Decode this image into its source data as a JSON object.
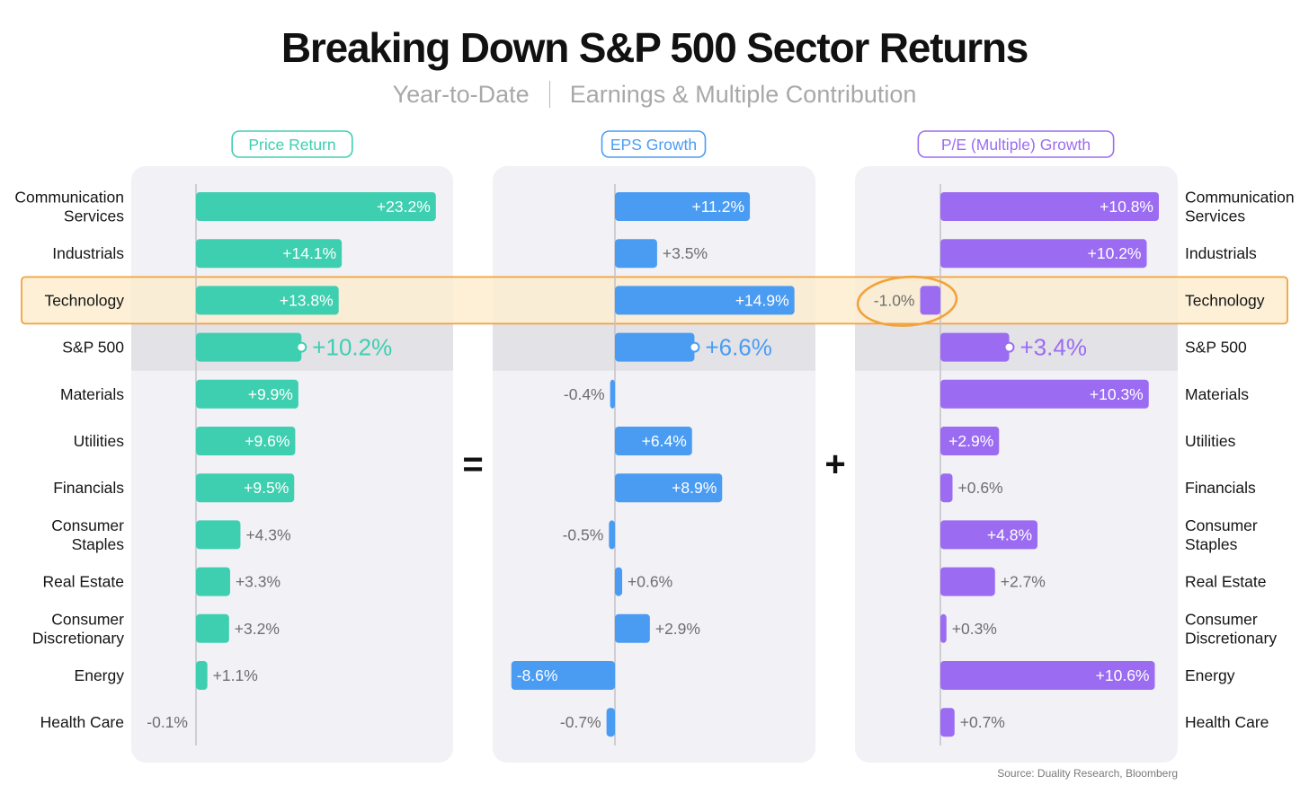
{
  "title": "Breaking Down S&P 500 Sector Returns",
  "subtitle_left": "Year-to-Date",
  "subtitle_right": "Earnings & Multiple Contribution",
  "source": "Source: Duality Research, Bloomberg",
  "operators": {
    "equals": "=",
    "plus": "+"
  },
  "colors": {
    "price": "#3ecfb0",
    "eps": "#4a9cf3",
    "pe": "#9b6cf2",
    "highlight_fill": "#fdeccd",
    "highlight_border": "#f2a23a",
    "panel": "#f1f1f6",
    "baseline_band": "#e2e2e7"
  },
  "highlight": {
    "category": "Technology",
    "circled_value": "-1.0%"
  },
  "chart_data": {
    "type": "bar",
    "orientation": "horizontal",
    "categories": [
      "Communication Services",
      "Industrials",
      "Technology",
      "S&P 500",
      "Materials",
      "Utilities",
      "Financials",
      "Consumer Staples",
      "Real Estate",
      "Consumer Discretionary",
      "Energy",
      "Health Care"
    ],
    "category_labels": [
      [
        "Communication",
        "Services"
      ],
      [
        "Industrials"
      ],
      [
        "Technology"
      ],
      [
        "S&P 500"
      ],
      [
        "Materials"
      ],
      [
        "Utilities"
      ],
      [
        "Financials"
      ],
      [
        "Consumer",
        "Staples"
      ],
      [
        "Real Estate"
      ],
      [
        "Consumer",
        "Discretionary"
      ],
      [
        "Energy"
      ],
      [
        "Health Care"
      ]
    ],
    "benchmark": "S&P 500",
    "series": [
      {
        "name": "Price Return",
        "color_key": "price",
        "values": [
          23.2,
          14.1,
          13.8,
          10.2,
          9.9,
          9.6,
          9.5,
          4.3,
          3.3,
          3.2,
          1.1,
          -0.1
        ],
        "labels": [
          "+23.2%",
          "+14.1%",
          "+13.8%",
          "+10.2%",
          "+9.9%",
          "+9.6%",
          "+9.5%",
          "+4.3%",
          "+3.3%",
          "+3.2%",
          "+1.1%",
          "-0.1%"
        ]
      },
      {
        "name": "EPS Growth",
        "color_key": "eps",
        "values": [
          11.2,
          3.5,
          14.9,
          6.6,
          -0.4,
          6.4,
          8.9,
          -0.5,
          0.6,
          2.9,
          -8.6,
          -0.7
        ],
        "labels": [
          "+11.2%",
          "+3.5%",
          "+14.9%",
          "+6.6%",
          "-0.4%",
          "+6.4%",
          "+8.9%",
          "-0.5%",
          "+0.6%",
          "+2.9%",
          "-8.6%",
          "-0.7%"
        ]
      },
      {
        "name": "P/E (Multiple) Growth",
        "color_key": "pe",
        "values": [
          10.8,
          10.2,
          -1.0,
          3.4,
          10.3,
          2.9,
          0.6,
          4.8,
          2.7,
          0.3,
          10.6,
          0.7
        ],
        "labels": [
          "+10.8%",
          "+10.2%",
          "-1.0%",
          "+3.4%",
          "+10.3%",
          "+2.9%",
          "+0.6%",
          "+4.8%",
          "+2.7%",
          "+0.3%",
          "+10.6%",
          "+0.7%"
        ]
      }
    ]
  }
}
